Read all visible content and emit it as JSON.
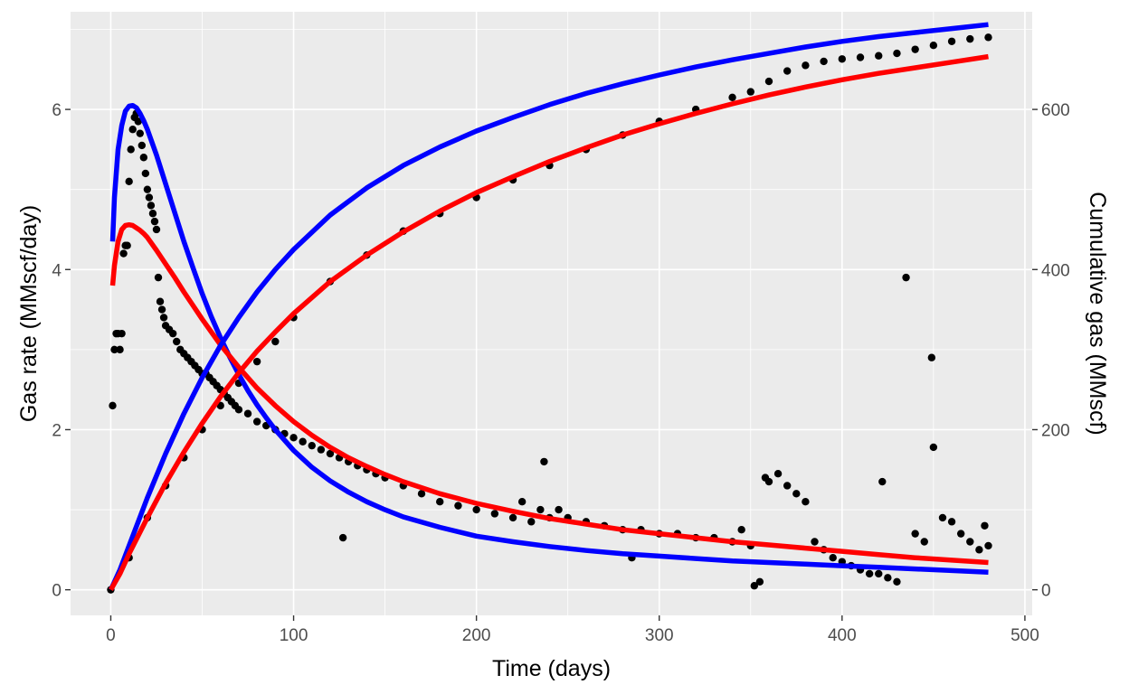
{
  "chart_data": {
    "type": "scatter",
    "title": "",
    "xlabel": "Time (days)",
    "ylabel_left": "Gas rate (MMscf/day)",
    "ylabel_right": "Cumulative gas (MMscf)",
    "xlim": [
      -22,
      504
    ],
    "ylim_left": [
      -0.32,
      7.22
    ],
    "ylim_right": [
      -32,
      722
    ],
    "x_ticks": [
      0,
      100,
      200,
      300,
      400,
      500
    ],
    "x_tick_labels": [
      "0",
      "100",
      "200",
      "300",
      "400",
      "500"
    ],
    "y_left_ticks": [
      0,
      2,
      4,
      6
    ],
    "y_left_tick_labels": [
      "0",
      "2",
      "4",
      "6"
    ],
    "y_right_ticks": [
      0,
      200,
      400,
      600
    ],
    "y_right_tick_labels": [
      "0",
      "200",
      "400",
      "600"
    ],
    "grid": true,
    "legend": "none",
    "colors": {
      "panel": "#ebebeb",
      "points": "#000000",
      "blue": "#0000ff",
      "red": "#ff0000"
    },
    "series": [
      {
        "kind": "points",
        "axis": "left",
        "color": "#000000",
        "x": [
          1,
          2,
          3,
          4,
          5,
          6,
          7,
          8,
          9,
          10,
          11,
          12,
          13,
          14,
          15,
          16,
          17,
          18,
          19,
          20,
          21,
          22,
          23,
          24,
          25,
          26,
          27,
          28,
          29,
          30,
          32,
          34,
          36,
          38,
          40,
          42,
          44,
          46,
          48,
          50,
          52,
          54,
          56,
          58,
          60,
          62,
          64,
          66,
          68,
          70,
          75,
          80,
          85,
          90,
          95,
          100,
          105,
          110,
          115,
          120,
          125,
          127,
          130,
          135,
          140,
          145,
          150,
          160,
          170,
          180,
          190,
          200,
          210,
          220,
          225,
          230,
          235,
          237,
          240,
          245,
          250,
          260,
          270,
          280,
          285,
          290,
          300,
          310,
          320,
          330,
          340,
          345,
          350,
          352,
          355,
          358,
          360,
          365,
          370,
          375,
          380,
          385,
          390,
          395,
          400,
          405,
          410,
          415,
          420,
          422,
          425,
          430,
          435,
          440,
          445,
          449,
          450,
          455,
          460,
          465,
          470,
          475,
          478,
          480
        ],
        "y": [
          2.3,
          3.0,
          3.2,
          3.2,
          3.0,
          3.2,
          4.2,
          4.3,
          4.3,
          5.1,
          5.5,
          5.75,
          5.9,
          5.95,
          5.85,
          5.7,
          5.55,
          5.4,
          5.2,
          5.0,
          4.9,
          4.8,
          4.7,
          4.6,
          4.5,
          3.9,
          3.6,
          3.5,
          3.4,
          3.3,
          3.25,
          3.2,
          3.1,
          3.0,
          2.95,
          2.9,
          2.85,
          2.8,
          2.75,
          2.7,
          2.7,
          2.65,
          2.6,
          2.55,
          2.5,
          2.45,
          2.4,
          2.35,
          2.3,
          2.25,
          2.2,
          2.1,
          2.05,
          2.0,
          1.95,
          1.9,
          1.85,
          1.8,
          1.75,
          1.7,
          1.65,
          0.65,
          1.6,
          1.55,
          1.5,
          1.45,
          1.4,
          1.3,
          1.2,
          1.1,
          1.05,
          1.0,
          0.95,
          0.9,
          1.1,
          0.85,
          1.0,
          1.6,
          0.9,
          1.0,
          0.9,
          0.85,
          0.8,
          0.75,
          0.4,
          0.75,
          0.7,
          0.7,
          0.65,
          0.65,
          0.6,
          0.75,
          0.55,
          0.05,
          0.1,
          1.4,
          1.35,
          1.45,
          1.3,
          1.2,
          1.1,
          0.6,
          0.5,
          0.4,
          0.35,
          0.3,
          0.25,
          0.2,
          0.2,
          1.35,
          0.15,
          0.1,
          3.9,
          0.7,
          0.6,
          2.9,
          1.78,
          0.9,
          0.85,
          0.7,
          0.6,
          0.5,
          0.8,
          0.55
        ]
      },
      {
        "kind": "points",
        "axis": "right",
        "color": "#000000",
        "x": [
          0,
          10,
          20,
          30,
          40,
          50,
          60,
          70,
          80,
          90,
          100,
          120,
          140,
          160,
          180,
          200,
          220,
          240,
          260,
          280,
          300,
          320,
          340,
          350,
          360,
          370,
          380,
          390,
          400,
          410,
          420,
          430,
          440,
          450,
          460,
          470,
          480
        ],
        "y": [
          0,
          40,
          90,
          130,
          165,
          200,
          230,
          258,
          285,
          310,
          340,
          385,
          418,
          448,
          470,
          490,
          512,
          530,
          550,
          568,
          585,
          600,
          615,
          622,
          635,
          648,
          655,
          660,
          663,
          665,
          667,
          670,
          675,
          680,
          685,
          688,
          690
        ]
      },
      {
        "kind": "line",
        "axis": "left",
        "color": "#0000ff",
        "x": [
          1,
          2,
          4,
          6,
          8,
          10,
          12,
          14,
          16,
          18,
          20,
          25,
          30,
          35,
          40,
          45,
          50,
          55,
          60,
          65,
          70,
          75,
          80,
          85,
          90,
          100,
          110,
          120,
          130,
          140,
          150,
          160,
          180,
          200,
          220,
          240,
          260,
          280,
          300,
          320,
          340,
          360,
          380,
          400,
          420,
          440,
          460,
          480
        ],
        "y": [
          4.35,
          4.9,
          5.5,
          5.8,
          5.98,
          6.04,
          6.05,
          6.02,
          5.95,
          5.86,
          5.75,
          5.43,
          5.07,
          4.71,
          4.35,
          4.02,
          3.7,
          3.41,
          3.15,
          2.91,
          2.69,
          2.49,
          2.31,
          2.15,
          2.0,
          1.74,
          1.53,
          1.36,
          1.22,
          1.1,
          1.0,
          0.91,
          0.78,
          0.67,
          0.6,
          0.54,
          0.49,
          0.45,
          0.42,
          0.39,
          0.36,
          0.34,
          0.32,
          0.3,
          0.28,
          0.26,
          0.24,
          0.22
        ]
      },
      {
        "kind": "line",
        "axis": "left",
        "color": "#ff0000",
        "x": [
          1,
          2,
          4,
          6,
          8,
          10,
          12,
          14,
          16,
          18,
          20,
          25,
          30,
          35,
          40,
          45,
          50,
          55,
          60,
          65,
          70,
          75,
          80,
          85,
          90,
          100,
          110,
          120,
          130,
          140,
          150,
          160,
          180,
          200,
          220,
          240,
          260,
          280,
          300,
          320,
          340,
          360,
          380,
          400,
          420,
          440,
          460,
          480
        ],
        "y": [
          3.8,
          4.05,
          4.35,
          4.5,
          4.55,
          4.56,
          4.55,
          4.52,
          4.49,
          4.45,
          4.4,
          4.24,
          4.07,
          3.9,
          3.72,
          3.55,
          3.38,
          3.22,
          3.06,
          2.92,
          2.78,
          2.65,
          2.52,
          2.41,
          2.3,
          2.1,
          1.93,
          1.78,
          1.65,
          1.54,
          1.44,
          1.35,
          1.2,
          1.08,
          0.98,
          0.89,
          0.82,
          0.75,
          0.7,
          0.65,
          0.6,
          0.56,
          0.52,
          0.48,
          0.44,
          0.4,
          0.37,
          0.34
        ]
      },
      {
        "kind": "line",
        "axis": "right",
        "color": "#0000ff",
        "x": [
          0,
          5,
          10,
          20,
          30,
          40,
          50,
          60,
          70,
          80,
          90,
          100,
          120,
          140,
          160,
          180,
          200,
          220,
          240,
          260,
          280,
          300,
          320,
          340,
          360,
          380,
          400,
          420,
          440,
          460,
          480
        ],
        "y": [
          0,
          25,
          55,
          115,
          170,
          220,
          265,
          305,
          340,
          372,
          400,
          425,
          468,
          502,
          530,
          553,
          573,
          590,
          606,
          620,
          632,
          643,
          653,
          662,
          670,
          678,
          685,
          691,
          696,
          701,
          706
        ]
      },
      {
        "kind": "line",
        "axis": "right",
        "color": "#ff0000",
        "x": [
          0,
          5,
          10,
          20,
          30,
          40,
          50,
          60,
          70,
          80,
          90,
          100,
          120,
          140,
          160,
          180,
          200,
          220,
          240,
          260,
          280,
          300,
          320,
          340,
          360,
          380,
          400,
          420,
          440,
          460,
          480
        ],
        "y": [
          0,
          20,
          45,
          90,
          133,
          172,
          208,
          241,
          271,
          298,
          322,
          345,
          385,
          418,
          447,
          473,
          496,
          516,
          535,
          552,
          568,
          582,
          595,
          607,
          618,
          628,
          637,
          645,
          652,
          659,
          666
        ]
      }
    ]
  }
}
